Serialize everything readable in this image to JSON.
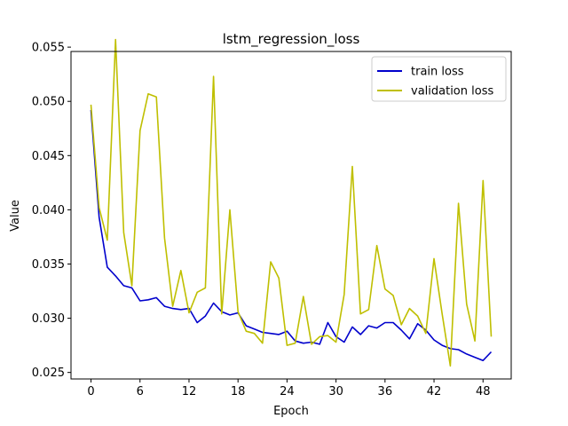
{
  "chart_data": {
    "type": "line",
    "title": "lstm_regression_loss",
    "xlabel": "Epoch",
    "ylabel": "Value",
    "xlim": [
      -2.45,
      51.45
    ],
    "ylim": [
      0.0244,
      0.0546
    ],
    "xticks": [
      0,
      6,
      12,
      18,
      24,
      30,
      36,
      42,
      48
    ],
    "yticks": [
      0.025,
      0.03,
      0.035,
      0.04,
      0.045,
      0.05,
      0.055
    ],
    "ytick_labels": [
      "0.025",
      "0.030",
      "0.035",
      "0.040",
      "0.045",
      "0.050",
      "0.055"
    ],
    "legend_position": "upper right",
    "grid": false,
    "x": [
      0,
      1,
      2,
      3,
      4,
      5,
      6,
      7,
      8,
      9,
      10,
      11,
      12,
      13,
      14,
      15,
      16,
      17,
      18,
      19,
      20,
      21,
      22,
      23,
      24,
      25,
      26,
      27,
      28,
      29,
      30,
      31,
      32,
      33,
      34,
      35,
      36,
      37,
      38,
      39,
      40,
      41,
      42,
      43,
      44,
      45,
      46,
      47,
      48,
      49
    ],
    "series": [
      {
        "name": "train loss",
        "color": "#0000cc",
        "values": [
          0.0492,
          0.0393,
          0.0347,
          0.0339,
          0.033,
          0.0328,
          0.0316,
          0.0317,
          0.0319,
          0.0311,
          0.0309,
          0.0308,
          0.0309,
          0.0296,
          0.0302,
          0.0314,
          0.0306,
          0.0303,
          0.0305,
          0.0293,
          0.029,
          0.0287,
          0.0286,
          0.0285,
          0.0288,
          0.0279,
          0.0277,
          0.0278,
          0.0276,
          0.0296,
          0.0283,
          0.0278,
          0.0292,
          0.0285,
          0.0293,
          0.0291,
          0.0296,
          0.0296,
          0.0289,
          0.0281,
          0.0295,
          0.0289,
          0.028,
          0.0275,
          0.0272,
          0.0271,
          0.0267,
          0.0264,
          0.0261,
          0.0269
        ]
      },
      {
        "name": "validation loss",
        "color": "#bfbf00",
        "values": [
          0.0497,
          0.0402,
          0.0372,
          0.0557,
          0.0379,
          0.033,
          0.0473,
          0.0507,
          0.0504,
          0.0374,
          0.0311,
          0.0344,
          0.0305,
          0.0324,
          0.0328,
          0.0523,
          0.0304,
          0.04,
          0.0306,
          0.0288,
          0.0286,
          0.0277,
          0.0352,
          0.0337,
          0.0275,
          0.0277,
          0.032,
          0.0276,
          0.0283,
          0.0284,
          0.0278,
          0.0322,
          0.044,
          0.0304,
          0.0308,
          0.0367,
          0.0327,
          0.0321,
          0.0294,
          0.0309,
          0.0302,
          0.0286,
          0.0355,
          0.0304,
          0.0256,
          0.0406,
          0.0313,
          0.0279,
          0.0427,
          0.0283
        ]
      }
    ]
  }
}
